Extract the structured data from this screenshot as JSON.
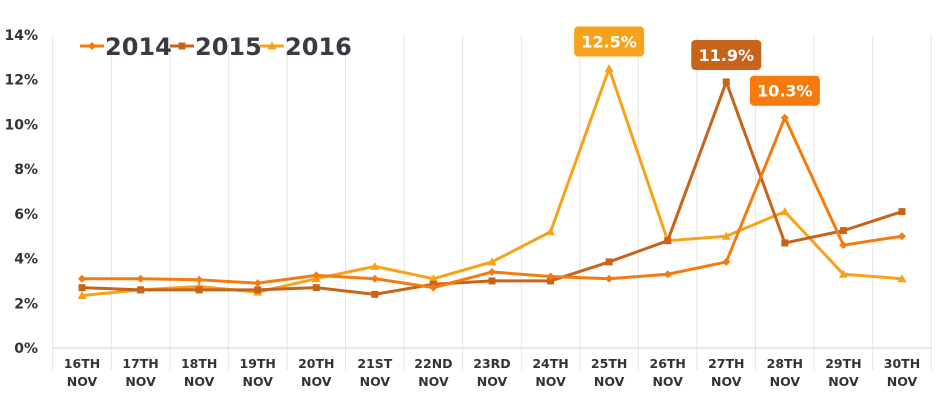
{
  "chart_data": {
    "type": "line",
    "title": "",
    "xlabel": "",
    "ylabel": "",
    "ylim": [
      0,
      14
    ],
    "y_ticks": [
      "0%",
      "2%",
      "4%",
      "6%",
      "8%",
      "10%",
      "12%",
      "14%"
    ],
    "y_tick_values": [
      0,
      2,
      4,
      6,
      8,
      10,
      12,
      14
    ],
    "categories": [
      [
        "16TH",
        "NOV"
      ],
      [
        "17TH",
        "NOV"
      ],
      [
        "18TH",
        "NOV"
      ],
      [
        "19TH",
        "NOV"
      ],
      [
        "20TH",
        "NOV"
      ],
      [
        "21ST",
        "NOV"
      ],
      [
        "22ND",
        "NOV"
      ],
      [
        "23RD",
        "NOV"
      ],
      [
        "24TH",
        "NOV"
      ],
      [
        "25TH",
        "NOV"
      ],
      [
        "26TH",
        "NOV"
      ],
      [
        "27TH",
        "NOV"
      ],
      [
        "28TH",
        "NOV"
      ],
      [
        "29TH",
        "NOV"
      ],
      [
        "30TH",
        "NOV"
      ]
    ],
    "legend_position": "top-left",
    "grid": "vertical",
    "series": [
      {
        "name": "2014",
        "color": "#f57b0f",
        "marker": "diamond",
        "values": [
          3.1,
          3.1,
          3.05,
          2.9,
          3.25,
          3.1,
          2.7,
          3.4,
          3.2,
          3.1,
          3.3,
          3.85,
          10.3,
          4.6,
          5.0
        ],
        "callout": {
          "index": 12,
          "label": "10.3%"
        }
      },
      {
        "name": "2015",
        "color": "#c8631a",
        "marker": "square",
        "values": [
          2.7,
          2.6,
          2.6,
          2.6,
          2.7,
          2.4,
          2.85,
          3.0,
          3.0,
          3.85,
          4.8,
          11.9,
          4.7,
          5.25,
          6.1
        ],
        "callout": {
          "index": 11,
          "label": "11.9%"
        }
      },
      {
        "name": "2016",
        "color": "#f8a21b",
        "marker": "triangle",
        "values": [
          2.35,
          2.6,
          2.75,
          2.5,
          3.1,
          3.65,
          3.1,
          3.85,
          5.2,
          12.5,
          4.8,
          5.0,
          6.1,
          3.3,
          3.1
        ],
        "callout": {
          "index": 9,
          "label": "12.5%"
        }
      }
    ]
  }
}
